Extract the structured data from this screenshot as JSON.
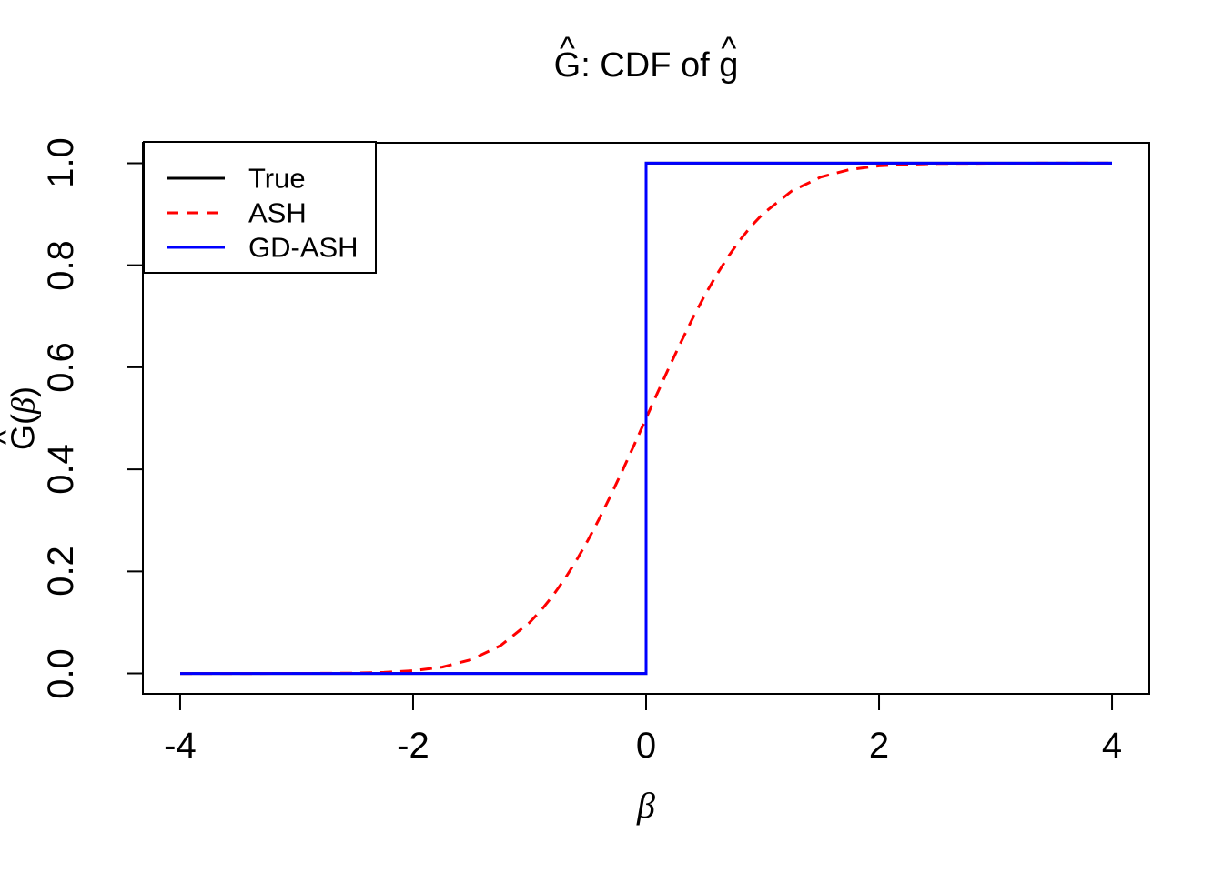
{
  "title_parts": {
    "hat": "^",
    "lead": "G",
    "mid": ": CDF of ",
    "tail": "g"
  },
  "ylabel_parts": {
    "hat": "^",
    "letter": "G",
    "open": "(",
    "beta": "β",
    "close": ")"
  },
  "chart_data": {
    "type": "line",
    "title": "Ĝ: CDF of ĝ",
    "xlabel": "β",
    "ylabel": "Ĝ(β)",
    "xlim": [
      -4.32,
      4.32
    ],
    "ylim": [
      -0.04,
      1.04
    ],
    "grid": false,
    "x_ticks": [
      -4,
      -2,
      0,
      2,
      4
    ],
    "x_tick_labels": [
      "-4",
      "-2",
      "0",
      "2",
      "4"
    ],
    "y_ticks": [
      0.0,
      0.2,
      0.4,
      0.6,
      0.8,
      1.0
    ],
    "y_tick_labels": [
      "0.0",
      "0.2",
      "0.4",
      "0.6",
      "0.8",
      "1.0"
    ],
    "colors": {
      "true": "#000000",
      "ash": "#FF0000",
      "gd_ash": "#0000FF",
      "axis": "#000000",
      "background": "#FFFFFF"
    },
    "legend": {
      "position": "top-left",
      "entries": [
        {
          "label": "True",
          "color": "#000000",
          "style": "solid"
        },
        {
          "label": "ASH",
          "color": "#FF0000",
          "style": "dashed"
        },
        {
          "label": "GD-ASH",
          "color": "#0000FF",
          "style": "solid"
        }
      ]
    },
    "series": [
      {
        "name": "True",
        "color": "#000000",
        "style": "solid",
        "description": "step function: point mass at 0",
        "points": [
          [
            -4,
            0
          ],
          [
            0,
            0
          ],
          [
            0,
            1
          ],
          [
            4,
            1
          ]
        ]
      },
      {
        "name": "ASH",
        "color": "#FF0000",
        "style": "dashed",
        "description": "smooth CDF ~ Normal(0,0.78) CDF",
        "points": [
          [
            -4,
            0.0
          ],
          [
            -3.5,
            0.0
          ],
          [
            -3,
            0.0001
          ],
          [
            -2.75,
            0.0002
          ],
          [
            -2.5,
            0.0007
          ],
          [
            -2.25,
            0.002
          ],
          [
            -2,
            0.0052
          ],
          [
            -1.75,
            0.0124
          ],
          [
            -1.5,
            0.0272
          ],
          [
            -1.25,
            0.0545
          ],
          [
            -1,
            0.0999
          ],
          [
            -0.9,
            0.1242
          ],
          [
            -0.8,
            0.1525
          ],
          [
            -0.7,
            0.1847
          ],
          [
            -0.6,
            0.2209
          ],
          [
            -0.5,
            0.2606
          ],
          [
            -0.4,
            0.304
          ],
          [
            -0.3,
            0.3504
          ],
          [
            -0.2,
            0.399
          ],
          [
            -0.1,
            0.4491
          ],
          [
            0,
            0.5
          ],
          [
            0.1,
            0.5509
          ],
          [
            0.2,
            0.601
          ],
          [
            0.3,
            0.6496
          ],
          [
            0.4,
            0.696
          ],
          [
            0.5,
            0.7394
          ],
          [
            0.6,
            0.7791
          ],
          [
            0.7,
            0.8153
          ],
          [
            0.8,
            0.8475
          ],
          [
            0.9,
            0.8758
          ],
          [
            1,
            0.9001
          ],
          [
            1.25,
            0.9455
          ],
          [
            1.5,
            0.9728
          ],
          [
            1.75,
            0.9876
          ],
          [
            2,
            0.9948
          ],
          [
            2.25,
            0.998
          ],
          [
            2.5,
            0.9993
          ],
          [
            2.75,
            0.9998
          ],
          [
            3,
            0.9999
          ],
          [
            3.5,
            1.0
          ],
          [
            4,
            1.0
          ]
        ]
      },
      {
        "name": "GD-ASH",
        "color": "#0000FF",
        "style": "solid",
        "description": "step function: point mass at 0 (overlaps True)",
        "points": [
          [
            -4,
            0
          ],
          [
            0,
            0
          ],
          [
            0,
            1
          ],
          [
            4,
            1
          ]
        ]
      }
    ]
  }
}
